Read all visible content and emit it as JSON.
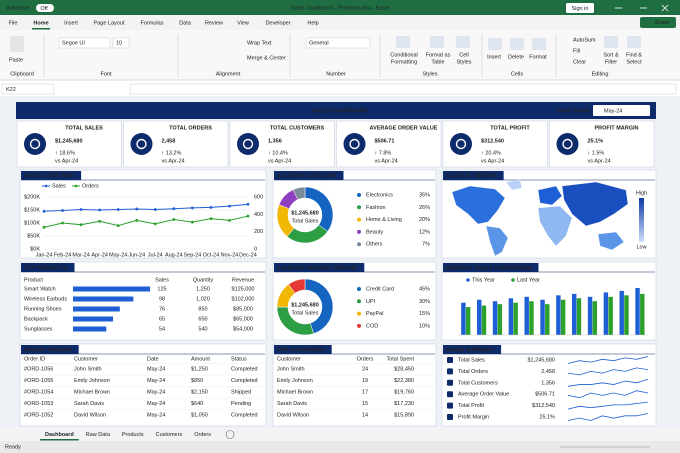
{
  "title_bar": {
    "autosave": "AutoSave",
    "autosave_state": "Off",
    "document_title": "Sales Dashboard - Premium.xlsx - Excel",
    "sign_in": "Sign in"
  },
  "menu": {
    "tabs": [
      "File",
      "Home",
      "Insert",
      "Page Layout",
      "Formulas",
      "Data",
      "Review",
      "View",
      "Developer",
      "Help"
    ],
    "share": "Share"
  },
  "ribbon": {
    "groups": [
      "Clipboard",
      "Font",
      "Alignment",
      "Number",
      "Styles",
      "Cells",
      "Editing"
    ],
    "buttons": [
      {
        "lines": [
          "Paste"
        ]
      },
      {
        "lines": [
          "Segoe UI"
        ]
      },
      {
        "lines": [
          "10"
        ]
      },
      {
        "lines": [
          "Wrap Text"
        ]
      },
      {
        "lines": [
          "Merge & Center"
        ]
      },
      {
        "lines": [
          "General"
        ]
      },
      {
        "lines": [
          "Conditional",
          "Formatting"
        ]
      },
      {
        "lines": [
          "Format as",
          "Table"
        ]
      },
      {
        "lines": [
          "Cell",
          "Styles"
        ]
      },
      {
        "lines": [
          "Insert"
        ]
      },
      {
        "lines": [
          "Delete"
        ]
      },
      {
        "lines": [
          "Format"
        ]
      },
      {
        "lines": [
          "AutoSum"
        ]
      },
      {
        "lines": [
          "Fill"
        ]
      },
      {
        "lines": [
          "Clear"
        ]
      },
      {
        "lines": [
          "Sort &",
          "Filter"
        ]
      },
      {
        "lines": [
          "Find &",
          "Select"
        ]
      }
    ]
  },
  "formula_bar": {
    "name_box": "K22"
  },
  "dashboard": {
    "title": "SALES DASHBOARD",
    "select_month_label": "Select Month",
    "selected_month": "May-24",
    "kpis": [
      {
        "label": "TOTAL SALES",
        "value": "$1,245,680",
        "change": "↑ 18.6%",
        "comparison": "vs Apr-24"
      },
      {
        "label": "TOTAL ORDERS",
        "value": "2,458",
        "change": "↑ 13.2%",
        "comparison": "vs Apr-24"
      },
      {
        "label": "TOTAL CUSTOMERS",
        "value": "1,356",
        "change": "↑ 10.4%",
        "comparison": "vs Apr-24"
      },
      {
        "label": "AVERAGE ORDER VALUE",
        "value": "$506.71",
        "change": "↑ 7.8%",
        "comparison": "vs Apr-24"
      },
      {
        "label": "TOTAL PROFIT",
        "value": "$312,540",
        "change": "↑ 20.4%",
        "comparison": "vs Apr-24"
      },
      {
        "label": "PROFIT MARGIN",
        "value": "25.1%",
        "change": "↑ 1.5%",
        "comparison": "vs Apr-24"
      }
    ],
    "sales_over_time": {
      "type": "line",
      "title": "SALES OVER TIME",
      "x": [
        "Jan-24",
        "Feb-24",
        "Mar-24",
        "Apr-24",
        "May-24",
        "Jun-24",
        "Jul-24",
        "Aug-24",
        "Sep-24",
        "Oct-24",
        "Nov-24",
        "Dec-24"
      ],
      "series": [
        {
          "name": "Sales",
          "color": "#1f5fd6",
          "values": [
            145000,
            148000,
            152000,
            150000,
            152000,
            154000,
            152000,
            155000,
            158000,
            160000,
            165000,
            172000
          ]
        },
        {
          "name": "Orders",
          "color": "#2ca02c",
          "axis": "y2",
          "values": [
            250,
            300,
            280,
            320,
            270,
            330,
            290,
            340,
            310,
            350,
            330,
            380
          ]
        }
      ],
      "ylim": [
        0,
        200000
      ],
      "yticks": [
        {
          "value": 0,
          "label": "$0K"
        },
        {
          "value": 50000,
          "label": "$50K"
        },
        {
          "value": 100000,
          "label": "$100K"
        },
        {
          "value": 150000,
          "label": "$150K"
        },
        {
          "value": 200000,
          "label": "$200K"
        }
      ],
      "y2lim": [
        0,
        600
      ],
      "y2ticks": [
        0,
        200,
        400,
        600
      ],
      "grid": true
    },
    "sales_by_category": {
      "type": "pie",
      "title": "SALES BY CATEGORY",
      "center_value": "$1,245,680",
      "center_label": "Total Sales",
      "categories": [
        "Electronics",
        "Fashion",
        "Home & Living",
        "Beauty",
        "Others"
      ],
      "values": [
        35,
        26,
        20,
        12,
        7
      ],
      "value_labels": [
        "35%",
        "26%",
        "20%",
        "12%",
        "7%"
      ],
      "colors": [
        "#1565c0",
        "#2e9e44",
        "#f2b705",
        "#8e3fbf",
        "#7a8a9a"
      ]
    },
    "sales_by_region": {
      "title": "SALES BY REGION",
      "legend_high": "High",
      "legend_low": "Low"
    },
    "top_products": {
      "type": "bar",
      "title": "TOP PRODUCTS",
      "headers": [
        "Product",
        "Sales",
        "Quantity",
        "Revenue"
      ],
      "categories": [
        "Smart Watch",
        "Wireless Earbuds",
        "Running Shoes",
        "Backpack",
        "Sunglasses"
      ],
      "values": [
        125,
        98,
        76,
        65,
        54
      ],
      "quantity": [
        "1,250",
        "1,020",
        "850",
        "650",
        "540"
      ],
      "revenue": [
        "$125,000",
        "$102,000",
        "$85,000",
        "$65,000",
        "$54,000"
      ],
      "color": "#1f5fd6"
    },
    "sales_by_payment": {
      "type": "pie",
      "title": "SALES BY PAYMENT METHOD",
      "center_value": "$1,245,680",
      "center_label": "Total Sales",
      "categories": [
        "Credit Card",
        "UPI",
        "PayPal",
        "COD"
      ],
      "values": [
        45,
        30,
        15,
        10
      ],
      "value_labels": [
        "45%",
        "30%",
        "15%",
        "10%"
      ],
      "colors": [
        "#1565c0",
        "#2e9e44",
        "#f2b705",
        "#e53935"
      ]
    },
    "monthly_comparison": {
      "type": "bar",
      "title": "MONTHLY SALES COMPARISON",
      "categories": [
        null,
        null,
        null,
        null,
        null,
        null,
        null,
        null,
        null,
        null,
        null,
        null
      ],
      "series": [
        {
          "name": "This Year",
          "color": "#1f5fd6",
          "values": [
            110,
            120,
            115,
            125,
            130,
            120,
            135,
            140,
            130,
            145,
            150,
            160
          ]
        },
        {
          "name": "Last Year",
          "color": "#2ca02c",
          "values": [
            95,
            100,
            105,
            110,
            115,
            105,
            120,
            125,
            115,
            130,
            135,
            140
          ]
        }
      ]
    },
    "recent_orders": {
      "title": "RECENT ORDERS",
      "headers": [
        "Order ID",
        "Customer",
        "Date",
        "Amount",
        "Status"
      ],
      "rows": [
        [
          "#ORD-1056",
          "John Smith",
          "May-24",
          "$1,250",
          "Completed"
        ],
        [
          "#ORD-1055",
          "Emily Johnson",
          "May-24",
          "$850",
          "Completed"
        ],
        [
          "#ORD-1054",
          "Michael Brown",
          "May-24",
          "$2,150",
          "Shipped"
        ],
        [
          "#ORD-1053",
          "Sarah Davis",
          "May-24",
          "$640",
          "Pending"
        ],
        [
          "#ORD-1052",
          "David Wilson",
          "May-24",
          "$1,050",
          "Completed"
        ]
      ],
      "status_colors": [
        "#2e9e44",
        "#2e9e44",
        "#1f5fd6",
        "#f08c00",
        "#2e9e44"
      ]
    },
    "top_customers": {
      "title": "TOP CUSTOMERS",
      "headers": [
        "Customer",
        "Orders",
        "Total Spent"
      ],
      "rows": [
        [
          "John Smith",
          "24",
          "$28,450"
        ],
        [
          "Emily Johnson",
          "19",
          "$22,380"
        ],
        [
          "Michael Brown",
          "17",
          "$19,760"
        ],
        [
          "Sarah Davis",
          "15",
          "$17,230"
        ],
        [
          "David Wilson",
          "14",
          "$15,890"
        ]
      ]
    },
    "sales_summary": {
      "title": "SALES SUMMARY",
      "rows": [
        {
          "label": "Total Sales",
          "value": "$1,245,680",
          "trend": [
            3,
            5,
            4,
            6,
            5,
            7,
            6,
            8
          ]
        },
        {
          "label": "Total Orders",
          "value": "2,458",
          "trend": [
            4,
            3,
            5,
            4,
            6,
            5,
            7,
            6
          ]
        },
        {
          "label": "Total Customers",
          "value": "1,356",
          "trend": [
            3,
            4,
            4,
            5,
            4,
            6,
            5,
            7
          ]
        },
        {
          "label": "Average Order Value",
          "value": "$506.71",
          "trend": [
            5,
            4,
            6,
            5,
            6,
            5,
            7,
            6
          ]
        },
        {
          "label": "Total Profit",
          "value": "$312,540",
          "trend": [
            3,
            5,
            4,
            5,
            6,
            6,
            7,
            8
          ]
        },
        {
          "label": "Profit Margin",
          "value": "25.1%",
          "trend": [
            4,
            5,
            4,
            6,
            5,
            6,
            6,
            7
          ]
        }
      ],
      "color": "#1f5fd6"
    }
  },
  "sheet_tabs": [
    "Dashboard",
    "Raw Data",
    "Products",
    "Customers",
    "Orders"
  ],
  "status_bar": {
    "status": "Ready"
  }
}
